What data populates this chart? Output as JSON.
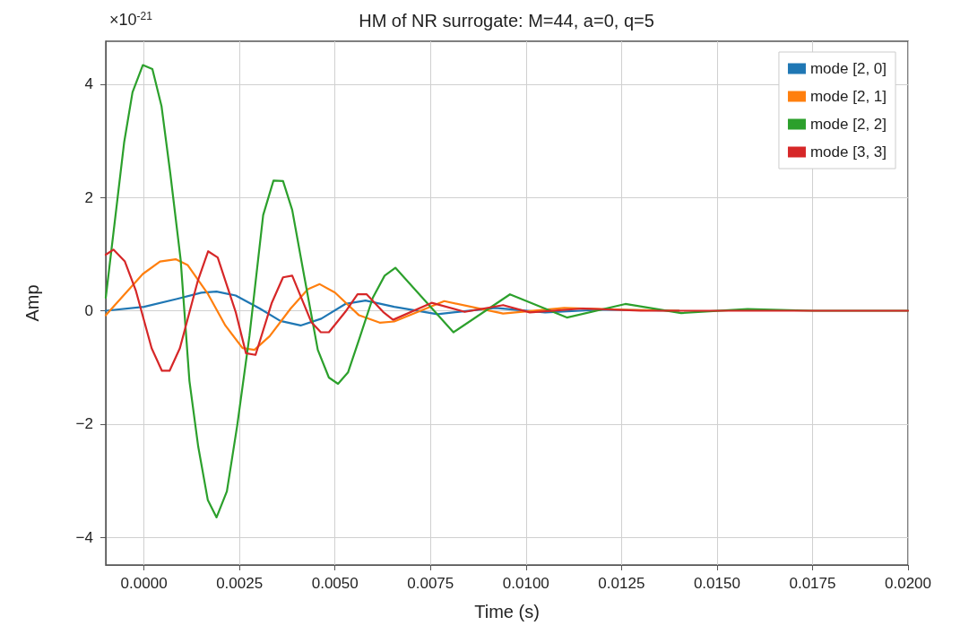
{
  "chart_data": {
    "type": "line",
    "title": "HM of NR surrogate: M=44, a=0, q=5",
    "xlabel": "Time (s)",
    "ylabel": "Amp",
    "annotations": [
      "×10$^{-21}$"
    ],
    "xlim": [
      -0.001,
      0.02
    ],
    "xticks": [
      {
        "value": 0,
        "label": "0.0000"
      },
      {
        "value": 0.0025,
        "label": "0.0025"
      },
      {
        "value": 0.005,
        "label": "0.0050"
      },
      {
        "value": 0.0075,
        "label": "0.0075"
      },
      {
        "value": 0.01,
        "label": "0.0100"
      },
      {
        "value": 0.0125,
        "label": "0.0125"
      },
      {
        "value": 0.015,
        "label": "0.0150"
      },
      {
        "value": 0.0175,
        "label": "0.0175"
      },
      {
        "value": 0.02,
        "label": "0.0200"
      }
    ],
    "ylim": [
      -4.49,
      4.76
    ],
    "yticks": [
      {
        "value": -4,
        "label": "−4"
      },
      {
        "value": -2,
        "label": "−2"
      },
      0,
      2,
      4
    ],
    "grid": true,
    "legend": "top right",
    "marker": "none",
    "line_style": "solid",
    "series": [
      {
        "name": "mode [2, 0]",
        "color": "#1f77b4",
        "x": [
          -0.001,
          0,
          0.00087,
          0.0015,
          0.0019,
          0.0024,
          0.00303,
          0.00357,
          0.0041,
          0.00464,
          0.00527,
          0.0058,
          0.00655,
          0.00768,
          0.0092,
          0.0105,
          0.012,
          0.014
        ],
        "values": [
          0,
          0.07,
          0.21,
          0.32,
          0.34,
          0.27,
          0.04,
          -0.18,
          -0.26,
          -0.14,
          0.12,
          0.18,
          0.07,
          -0.06,
          0.05,
          -0.03,
          0.02,
          0
        ]
      },
      {
        "name": "mode [2, 1]",
        "color": "#ff7f0e",
        "x": [
          -0.001,
          -3e-05,
          0.00042,
          0.00083,
          0.00114,
          0.00168,
          0.00213,
          0.00258,
          0.00289,
          0.00329,
          0.00384,
          0.00429,
          0.0046,
          0.005,
          0.00563,
          0.00617,
          0.00655,
          0.00786,
          0.0094,
          0.011,
          0.0125,
          0.014
        ],
        "values": [
          -0.08,
          0.65,
          0.87,
          0.91,
          0.81,
          0.29,
          -0.26,
          -0.66,
          -0.69,
          -0.45,
          0.04,
          0.38,
          0.47,
          0.32,
          -0.08,
          -0.21,
          -0.19,
          0.17,
          -0.05,
          0.05,
          0.02,
          0
        ]
      },
      {
        "name": "mode [2, 2]",
        "color": "#2ca02c",
        "x": [
          -0.001,
          -0.00052,
          -0.0003,
          -3e-05,
          0.00022,
          0.00046,
          0.00069,
          0.00096,
          0.00119,
          0.00142,
          0.00167,
          0.0019,
          0.00217,
          0.00244,
          0.00276,
          0.00312,
          0.00339,
          0.00364,
          0.00388,
          0.0042,
          0.00455,
          0.00484,
          0.00508,
          0.00534,
          0.00563,
          0.00599,
          0.0063,
          0.00658,
          0.0081,
          0.00958,
          0.01107,
          0.0126,
          0.01406,
          0.0158,
          0.0175,
          0.02
        ],
        "values": [
          0.23,
          2.97,
          3.86,
          4.34,
          4.27,
          3.61,
          2.42,
          0.9,
          -1.24,
          -2.4,
          -3.34,
          -3.65,
          -3.19,
          -2.03,
          -0.45,
          1.69,
          2.3,
          2.29,
          1.78,
          0.59,
          -0.69,
          -1.18,
          -1.29,
          -1.09,
          -0.51,
          0.23,
          0.62,
          0.76,
          -0.38,
          0.29,
          -0.12,
          0.12,
          -0.04,
          0.03,
          0,
          0
        ]
      },
      {
        "name": "mode [3, 3]",
        "color": "#d62728",
        "x": [
          -0.001,
          -0.0008,
          -0.0005,
          -0.00021,
          0.0002,
          0.00047,
          0.00067,
          0.00094,
          0.00141,
          0.00168,
          0.00193,
          0.0024,
          0.00267,
          0.00292,
          0.00334,
          0.00364,
          0.00388,
          0.00438,
          0.00463,
          0.00484,
          0.00527,
          0.00559,
          0.00583,
          0.00626,
          0.00652,
          0.00753,
          0.0084,
          0.0094,
          0.0101,
          0.0115,
          0.013,
          0.016,
          0.02
        ],
        "values": [
          0.99,
          1.08,
          0.87,
          0.35,
          -0.66,
          -1.06,
          -1.06,
          -0.66,
          0.53,
          1.05,
          0.94,
          -0.02,
          -0.75,
          -0.78,
          0.13,
          0.59,
          0.62,
          -0.2,
          -0.38,
          -0.38,
          -0.02,
          0.29,
          0.29,
          -0.02,
          -0.16,
          0.14,
          -0.02,
          0.1,
          -0.03,
          0.04,
          0,
          0,
          0
        ]
      }
    ]
  }
}
